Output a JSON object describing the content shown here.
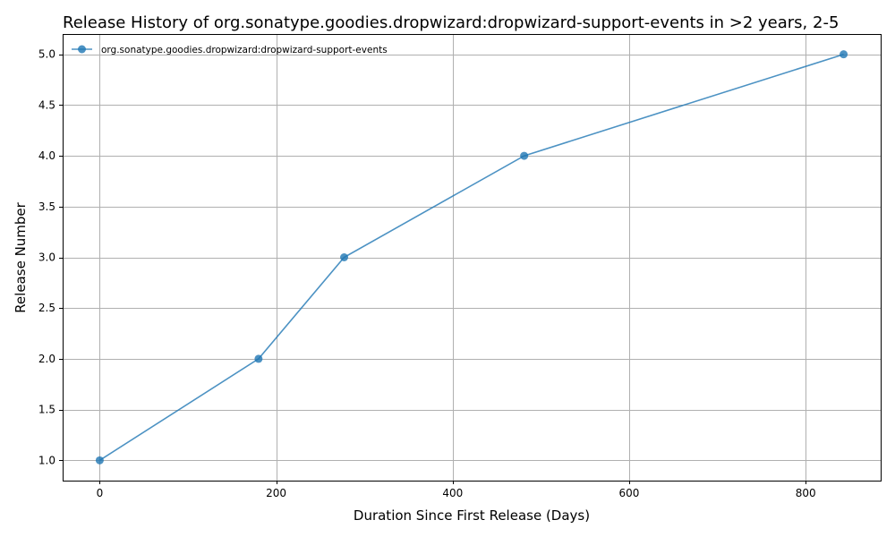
{
  "chart_data": {
    "type": "line",
    "title": "Release History of org.sonatype.goodies.dropwizard:dropwizard-support-events in >2 years, 2-5",
    "xlabel": "Duration Since First Release (Days)",
    "ylabel": "Release Number",
    "xlim": [
      -42,
      885
    ],
    "ylim": [
      0.8,
      5.2
    ],
    "x_ticks": [
      0,
      200,
      400,
      600,
      800
    ],
    "y_ticks": [
      1.0,
      1.5,
      2.0,
      2.5,
      3.0,
      3.5,
      4.0,
      4.5,
      5.0
    ],
    "x_tick_labels": [
      "0",
      "200",
      "400",
      "600",
      "800"
    ],
    "y_tick_labels": [
      "1.0",
      "1.5",
      "2.0",
      "2.5",
      "3.0",
      "3.5",
      "4.0",
      "4.5",
      "5.0"
    ],
    "grid": true,
    "legend_position": "top-left",
    "series": [
      {
        "name": "org.sonatype.goodies.dropwizard:dropwizard-support-events",
        "color": "#1f77b4",
        "marker": "circle",
        "x": [
          0,
          180,
          277,
          481,
          843
        ],
        "y": [
          1,
          2,
          3,
          4,
          5
        ]
      }
    ]
  }
}
